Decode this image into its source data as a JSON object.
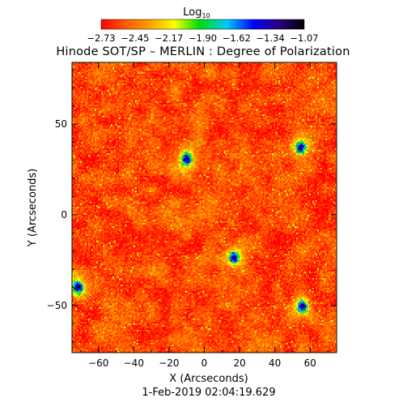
{
  "chart_data": {
    "type": "heatmap",
    "title": "Hinode SOT/SP – MERLIN : Degree of Polarization",
    "xlabel": "X (Arcseconds)",
    "ylabel": "Y (Arcseconds)",
    "timestamp": "1-Feb-2019 02:04:19.629",
    "xlim": [
      -75,
      75
    ],
    "ylim": [
      -76,
      84
    ],
    "xticks": [
      -60,
      -40,
      -20,
      0,
      20,
      40,
      60
    ],
    "yticks": [
      -50,
      0,
      50
    ],
    "colorbar": {
      "label": "Log",
      "label_subscript": "10",
      "range": [
        -2.73,
        -1.07
      ],
      "tick_labels": [
        "−2.73",
        "−2.45",
        "−2.17",
        "−1.90",
        "−1.62",
        "−1.34",
        "−1.07"
      ],
      "colors": [
        "#ff0000",
        "#ff5a00",
        "#ffa500",
        "#ffff00",
        "#00e000",
        "#00c8ff",
        "#0000ff",
        "#2a007a",
        "#000000"
      ]
    },
    "dominant_value": -2.6,
    "features": [
      {
        "label": "strong-polarization-patch",
        "x": 55,
        "y": 37
      },
      {
        "label": "strong-polarization-patch",
        "x": 17,
        "y": -24
      },
      {
        "label": "strong-polarization-patch",
        "x": 56,
        "y": -51
      },
      {
        "label": "strong-polarization-patch",
        "x": -72,
        "y": -40
      },
      {
        "label": "strong-polarization-patch",
        "x": -10,
        "y": 31
      }
    ]
  }
}
